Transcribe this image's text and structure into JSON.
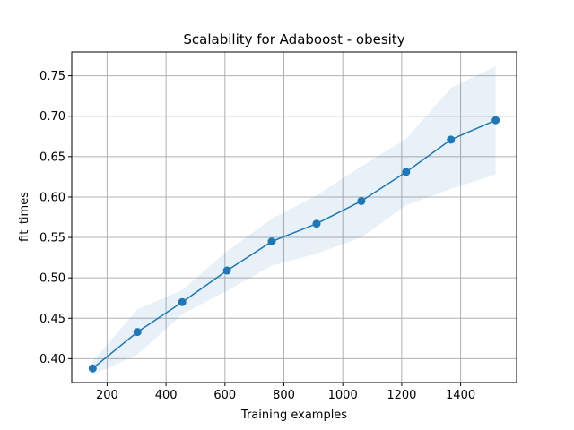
{
  "chart_data": {
    "type": "line",
    "title": "Scalability for Adaboost - obesity",
    "xlabel": "Training examples",
    "ylabel": "fit_times",
    "xlim": [
      80,
      1590
    ],
    "ylim": [
      0.3705,
      0.7795
    ],
    "xticks": [
      200,
      400,
      600,
      800,
      1000,
      1200,
      1400
    ],
    "yticks": [
      0.4,
      0.45,
      0.5,
      0.55,
      0.6,
      0.65,
      0.7,
      0.75
    ],
    "grid": true,
    "series": [
      {
        "x": [
          151,
          303,
          455,
          607,
          759,
          911,
          1063,
          1215,
          1367,
          1519
        ],
        "values": [
          0.388,
          0.433,
          0.47,
          0.509,
          0.545,
          0.567,
          0.595,
          0.631,
          0.671,
          0.695
        ],
        "lower": [
          0.38,
          0.405,
          0.455,
          0.484,
          0.515,
          0.53,
          0.55,
          0.59,
          0.61,
          0.628
        ],
        "upper": [
          0.397,
          0.461,
          0.485,
          0.533,
          0.573,
          0.602,
          0.638,
          0.672,
          0.735,
          0.762
        ],
        "color": "#1f77b4",
        "band_color": "#1f77b4"
      }
    ]
  }
}
